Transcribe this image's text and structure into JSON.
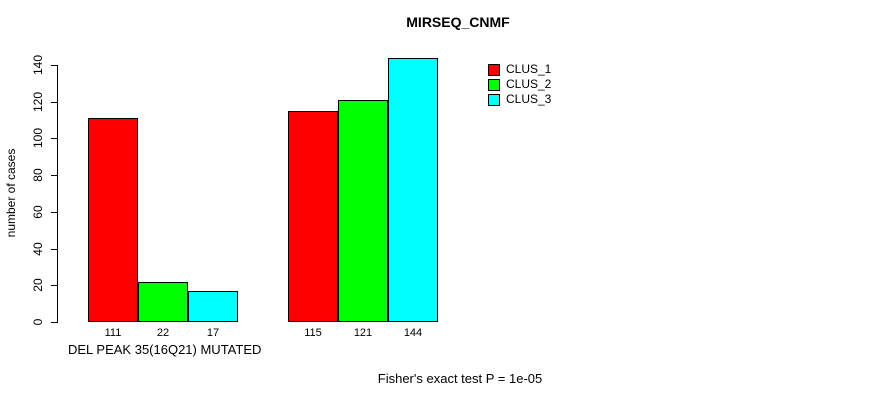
{
  "chart_data": {
    "type": "bar",
    "title": "MIRSEQ_CNMF",
    "ylabel": "number of cases",
    "ylim": [
      0,
      140
    ],
    "yticks": [
      0,
      20,
      40,
      60,
      80,
      100,
      120,
      140
    ],
    "grid": false,
    "legend_position": "top-right",
    "bar_border_color": "#000000",
    "series": [
      {
        "name": "CLUS_1",
        "color": "#FF0000"
      },
      {
        "name": "CLUS_2",
        "color": "#00FF00"
      },
      {
        "name": "CLUS_3",
        "color": "#00FFFF"
      }
    ],
    "groups": [
      {
        "label": "DEL PEAK 35(16Q21) MUTATED",
        "values": [
          111,
          22,
          17
        ]
      },
      {
        "label": "",
        "values": [
          115,
          121,
          144
        ]
      }
    ],
    "annotation": "Fisher's exact test P = 1e-05"
  }
}
